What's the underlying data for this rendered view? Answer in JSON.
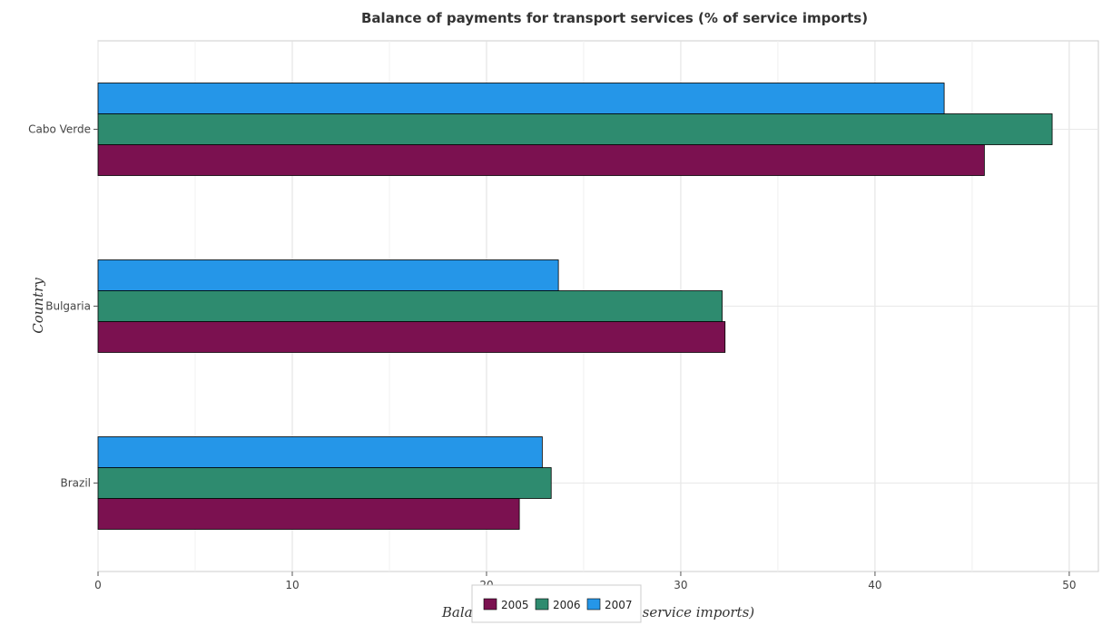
{
  "chart_data": {
    "type": "bar",
    "orientation": "horizontal",
    "title": "Balance of payments for transport services (% of service imports)",
    "xlabel": "Balance of Payment (as % of service imports)",
    "ylabel": "Country",
    "categories": [
      "Brazil",
      "Bulgaria",
      "Cabo Verde"
    ],
    "series": [
      {
        "name": "2005",
        "color": "#7b1150",
        "values": [
          21.69,
          32.28,
          45.63
        ]
      },
      {
        "name": "2006",
        "color": "#2e8b6f",
        "values": [
          23.33,
          32.13,
          49.12
        ]
      },
      {
        "name": "2007",
        "color": "#2596e8",
        "values": [
          22.87,
          23.7,
          43.56
        ]
      }
    ],
    "xlim": [
      0,
      51.5
    ],
    "xticks": [
      0,
      10,
      20,
      30,
      40,
      50
    ],
    "grid": true,
    "legend_position": "bottom-center"
  }
}
